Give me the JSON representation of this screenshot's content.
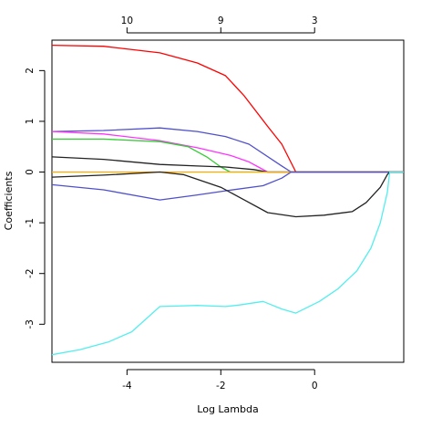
{
  "chart_data": {
    "type": "line",
    "title": "",
    "xlabel": "Log Lambda",
    "ylabel": "Coefficients",
    "xlim": [
      -5.6,
      1.9
    ],
    "ylim": [
      -3.75,
      2.6
    ],
    "x_ticks": [
      -4,
      -2,
      0
    ],
    "x_tick_labels": [
      "-4",
      "-2",
      "0"
    ],
    "y_ticks": [
      -3,
      -2,
      -1,
      0,
      1,
      2
    ],
    "y_tick_labels": [
      "-3",
      "-2",
      "-1",
      "0",
      "1",
      "2"
    ],
    "top_axis": {
      "ticks": [
        -4,
        -2,
        0
      ],
      "labels": [
        "10",
        "9",
        "3"
      ]
    },
    "grid": false,
    "series": [
      {
        "color": "#ff0000",
        "points": [
          [
            -5.6,
            2.5
          ],
          [
            -4.5,
            2.48
          ],
          [
            -3.3,
            2.35
          ],
          [
            -2.5,
            2.15
          ],
          [
            -1.9,
            1.9
          ],
          [
            -1.5,
            1.5
          ],
          [
            -1.0,
            0.9
          ],
          [
            -0.7,
            0.55
          ],
          [
            -0.4,
            0.0
          ],
          [
            1.9,
            0.0
          ]
        ]
      },
      {
        "color": "#5050cc",
        "points": [
          [
            -5.6,
            0.8
          ],
          [
            -4.5,
            0.82
          ],
          [
            -3.3,
            0.87
          ],
          [
            -2.5,
            0.8
          ],
          [
            -1.9,
            0.7
          ],
          [
            -1.4,
            0.55
          ],
          [
            -0.7,
            0.12
          ],
          [
            -0.5,
            0.0
          ],
          [
            1.9,
            0.0
          ]
        ]
      },
      {
        "color": "#ff33ff",
        "points": [
          [
            -5.6,
            0.8
          ],
          [
            -4.5,
            0.75
          ],
          [
            -3.3,
            0.62
          ],
          [
            -2.5,
            0.48
          ],
          [
            -1.8,
            0.33
          ],
          [
            -1.4,
            0.2
          ],
          [
            -1.2,
            0.1
          ],
          [
            -1.0,
            0.0
          ],
          [
            1.9,
            0.0
          ]
        ]
      },
      {
        "color": "#33cc33",
        "points": [
          [
            -5.6,
            0.65
          ],
          [
            -4.5,
            0.65
          ],
          [
            -3.3,
            0.6
          ],
          [
            -2.7,
            0.5
          ],
          [
            -2.3,
            0.3
          ],
          [
            -2.0,
            0.1
          ],
          [
            -1.8,
            0.0
          ],
          [
            1.9,
            0.0
          ]
        ]
      },
      {
        "color": "#222222",
        "points": [
          [
            -5.6,
            0.3
          ],
          [
            -4.5,
            0.25
          ],
          [
            -3.3,
            0.15
          ],
          [
            -2.5,
            0.12
          ],
          [
            -1.9,
            0.1
          ],
          [
            -1.3,
            0.05
          ],
          [
            -1.0,
            0.0
          ],
          [
            1.9,
            0.0
          ]
        ]
      },
      {
        "color": "#ffaa00",
        "points": [
          [
            -5.6,
            0.0
          ],
          [
            -3.3,
            0.0
          ],
          [
            -1.0,
            0.0
          ],
          [
            1.9,
            0.0
          ]
        ]
      },
      {
        "color": "#5050cc",
        "points": [
          [
            -5.6,
            -0.25
          ],
          [
            -4.5,
            -0.35
          ],
          [
            -3.3,
            -0.55
          ],
          [
            -2.5,
            -0.45
          ],
          [
            -1.9,
            -0.37
          ],
          [
            -1.1,
            -0.27
          ],
          [
            -0.7,
            -0.12
          ],
          [
            -0.5,
            0.0
          ],
          [
            1.9,
            0.0
          ]
        ]
      },
      {
        "color": "#222222",
        "points": [
          [
            -5.6,
            -0.1
          ],
          [
            -4.5,
            -0.06
          ],
          [
            -3.3,
            0.0
          ],
          [
            -2.8,
            -0.05
          ],
          [
            -2.0,
            -0.3
          ],
          [
            -1.5,
            -0.55
          ],
          [
            -1.0,
            -0.8
          ],
          [
            -0.4,
            -0.88
          ],
          [
            0.2,
            -0.85
          ],
          [
            0.8,
            -0.78
          ],
          [
            1.1,
            -0.6
          ],
          [
            1.4,
            -0.3
          ],
          [
            1.55,
            -0.05
          ],
          [
            1.6,
            0.0
          ],
          [
            1.9,
            0.0
          ]
        ]
      },
      {
        "color": "#55eeee",
        "points": [
          [
            -5.6,
            -3.6
          ],
          [
            -5.0,
            -3.5
          ],
          [
            -4.4,
            -3.35
          ],
          [
            -3.9,
            -3.15
          ],
          [
            -3.3,
            -2.65
          ],
          [
            -2.5,
            -2.63
          ],
          [
            -1.9,
            -2.65
          ],
          [
            -1.6,
            -2.62
          ],
          [
            -1.1,
            -2.55
          ],
          [
            -0.7,
            -2.7
          ],
          [
            -0.4,
            -2.78
          ],
          [
            0.1,
            -2.55
          ],
          [
            0.5,
            -2.3
          ],
          [
            0.9,
            -1.95
          ],
          [
            1.2,
            -1.5
          ],
          [
            1.4,
            -1.0
          ],
          [
            1.55,
            -0.4
          ],
          [
            1.6,
            0.0
          ],
          [
            1.9,
            0.0
          ]
        ]
      }
    ]
  }
}
